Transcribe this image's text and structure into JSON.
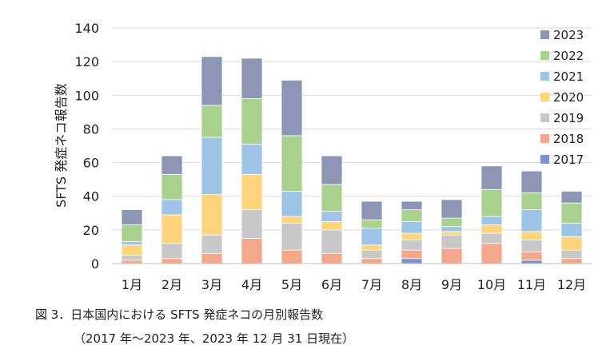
{
  "chart_data": {
    "type": "bar",
    "stacked": true,
    "ylabel": "SFTS 発症ネコ報告数",
    "xlabel": "",
    "ylim": [
      0,
      140
    ],
    "yticks": [
      0,
      20,
      40,
      60,
      80,
      100,
      120,
      140
    ],
    "categories": [
      "1月",
      "2月",
      "3月",
      "4月",
      "5月",
      "6月",
      "7月",
      "8月",
      "9月",
      "10月",
      "11月",
      "12月"
    ],
    "legend_position": "top-right",
    "series": [
      {
        "name": "2017",
        "color": "#7b93cf",
        "values": [
          0,
          0,
          0,
          0,
          0,
          0,
          0,
          3,
          0,
          0,
          2,
          0
        ]
      },
      {
        "name": "2018",
        "color": "#f2a88a",
        "values": [
          2,
          3,
          6,
          15,
          8,
          6,
          3,
          5,
          9,
          12,
          5,
          3
        ]
      },
      {
        "name": "2019",
        "color": "#c8c8c8",
        "values": [
          3,
          9,
          11,
          17,
          16,
          14,
          5,
          6,
          8,
          6,
          7,
          5
        ]
      },
      {
        "name": "2020",
        "color": "#ffd47a",
        "values": [
          6,
          17,
          24,
          21,
          4,
          5,
          3,
          4,
          2,
          5,
          5,
          8
        ]
      },
      {
        "name": "2021",
        "color": "#9dc3e6",
        "values": [
          2,
          9,
          34,
          18,
          15,
          6,
          10,
          7,
          3,
          5,
          13,
          8
        ]
      },
      {
        "name": "2022",
        "color": "#a9d18e",
        "values": [
          10,
          15,
          19,
          27,
          33,
          16,
          5,
          7,
          5,
          16,
          10,
          12
        ]
      },
      {
        "name": "2023",
        "color": "#8c96b4",
        "values": [
          9,
          11,
          29,
          24,
          33,
          17,
          11,
          5,
          11,
          14,
          13,
          7
        ]
      }
    ]
  },
  "caption": {
    "line1": "図 3．日本国内における SFTS 発症ネコの月別報告数",
    "line2": "（2017 年～2023 年、2023 年 12 月 31 日現在）"
  }
}
